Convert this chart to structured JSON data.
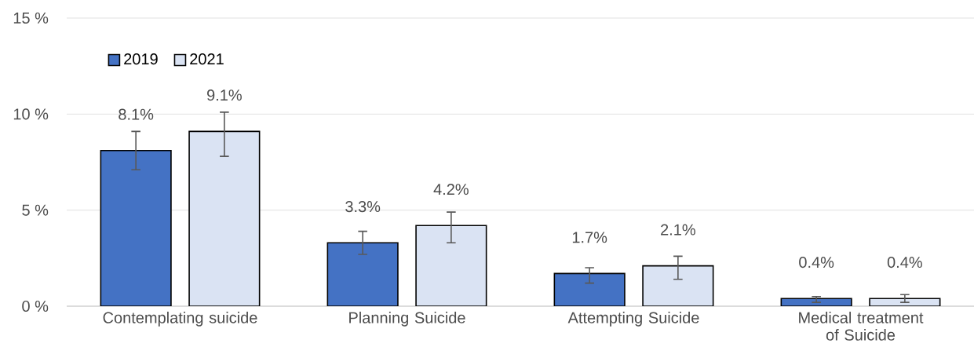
{
  "chart_data": {
    "type": "bar",
    "categories": [
      "Contemplating suicide",
      "Planning Suicide",
      "Attempting Suicide",
      "Medical treatment of Suicide"
    ],
    "series": [
      {
        "name": "2019",
        "color": "#4472c4",
        "values": [
          8.1,
          3.3,
          1.7,
          0.4
        ],
        "value_labels": [
          "8.1%",
          "3.3%",
          "1.7%",
          "0.4%"
        ],
        "errors": [
          [
            7.1,
            9.1
          ],
          [
            2.7,
            3.9
          ],
          [
            1.2,
            2.0
          ],
          [
            0.2,
            0.5
          ]
        ]
      },
      {
        "name": "2021",
        "color": "#dae3f3",
        "values": [
          9.1,
          4.2,
          2.1,
          0.4
        ],
        "value_labels": [
          "9.1%",
          "4.2%",
          "2.1%",
          "0.4%"
        ],
        "errors": [
          [
            7.8,
            10.1
          ],
          [
            3.3,
            4.9
          ],
          [
            1.4,
            2.6
          ],
          [
            0.2,
            0.6
          ]
        ]
      }
    ],
    "ylim": [
      0,
      15
    ],
    "yticks": [
      {
        "value": 0,
        "label": "0 %"
      },
      {
        "value": 5,
        "label": "5 %"
      },
      {
        "value": 10,
        "label": "10 %"
      },
      {
        "value": 15,
        "label": "15 %"
      }
    ],
    "grid": "y",
    "legend": "top left"
  }
}
